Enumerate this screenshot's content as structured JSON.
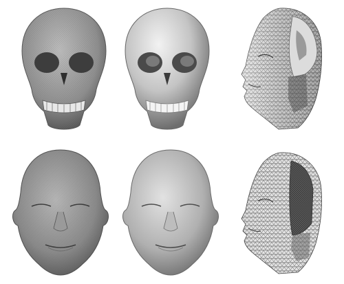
{
  "figure": {
    "panels": [
      {
        "id": "skull-mesh-front",
        "row": 1,
        "col": 1,
        "subject": "skull",
        "render": "fine-mesh-grey"
      },
      {
        "id": "skull-smooth-front",
        "row": 1,
        "col": 2,
        "subject": "skull",
        "render": "smooth-shaded"
      },
      {
        "id": "skull-face-wireframe-side",
        "row": 1,
        "col": 3,
        "subject": "face-with-skull-cutaway",
        "render": "triangle-wireframe"
      },
      {
        "id": "face-mesh-front",
        "row": 2,
        "col": 1,
        "subject": "face",
        "render": "fine-mesh-grey"
      },
      {
        "id": "face-smooth-front",
        "row": 2,
        "col": 2,
        "subject": "face",
        "render": "smooth-shaded"
      },
      {
        "id": "face-wireframe-side",
        "row": 2,
        "col": 3,
        "subject": "face-with-cutaway",
        "render": "triangle-wireframe"
      }
    ],
    "colors": {
      "background": "#ffffff",
      "surface_light": "#d9d9d9",
      "surface_mid": "#a9a9a9",
      "surface_dark": "#4a4a4a",
      "wire": "#3a3a3a"
    }
  }
}
